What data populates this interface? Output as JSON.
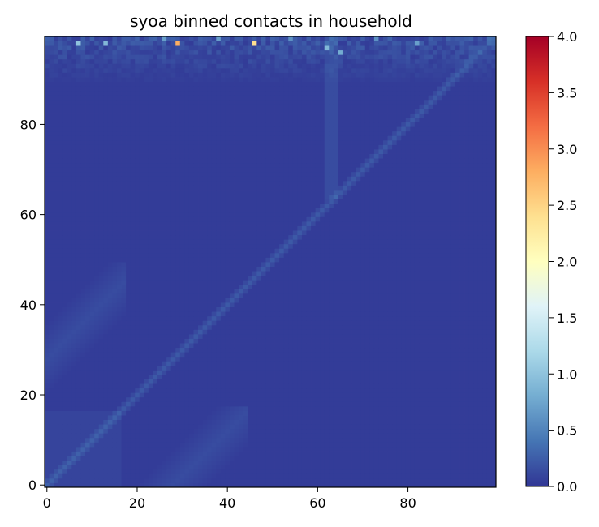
{
  "chart_data": {
    "type": "heatmap",
    "title": "syoa binned contacts in household",
    "xlabel": "",
    "ylabel": "",
    "size": 100,
    "xlim": [
      0,
      99
    ],
    "ylim": [
      0,
      99
    ],
    "x_ticks": [
      0,
      20,
      40,
      60,
      80
    ],
    "y_ticks": [
      0,
      20,
      40,
      60,
      80
    ],
    "colormap": "RdYlBu_r",
    "colorbar": {
      "vmin": 0.0,
      "vmax": 4.0,
      "ticks": [
        "0.0",
        "0.5",
        "1.0",
        "1.5",
        "2.0",
        "2.5",
        "3.0",
        "3.5",
        "4.0"
      ]
    },
    "pattern": {
      "background": 0.04,
      "diagonal_peak": 0.18,
      "parent_child_band_offset": 28,
      "parent_child_band_peak": 0.1,
      "child_block_boundary": 17,
      "elderly_block_start": 64,
      "noisy_rows_from": 90
    },
    "highlights": [
      {
        "x": 29,
        "y": 98,
        "value": 2.8
      },
      {
        "x": 46,
        "y": 98,
        "value": 2.4
      },
      {
        "x": 7,
        "y": 98,
        "value": 1.0
      },
      {
        "x": 13,
        "y": 98,
        "value": 0.9
      },
      {
        "x": 62,
        "y": 97,
        "value": 0.9
      },
      {
        "x": 65,
        "y": 96,
        "value": 0.8
      },
      {
        "x": 26,
        "y": 99,
        "value": 0.7
      },
      {
        "x": 38,
        "y": 99,
        "value": 0.7
      },
      {
        "x": 82,
        "y": 98,
        "value": 0.7
      },
      {
        "x": 54,
        "y": 99,
        "value": 0.6
      },
      {
        "x": 73,
        "y": 99,
        "value": 0.6
      }
    ],
    "grid": false,
    "legend": "none"
  }
}
